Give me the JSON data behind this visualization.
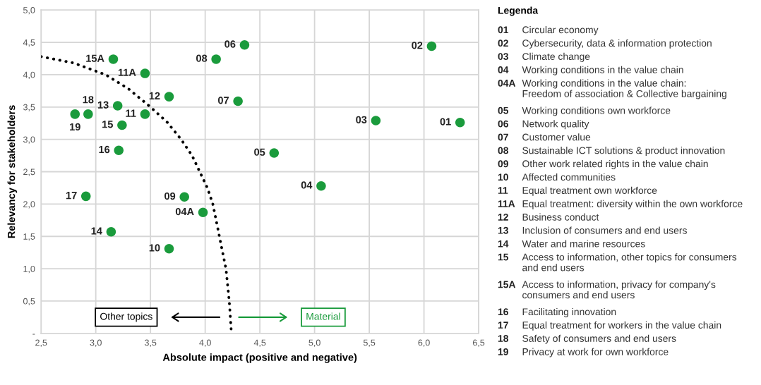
{
  "chart_data": [
    {
      "type": "scatter",
      "xlabel": "Absolute impact (positive and negative)",
      "ylabel": "Relevancy for stakeholders",
      "xlim": [
        2.5,
        6.5
      ],
      "ylim": [
        0,
        5
      ],
      "xticks": [
        {
          "value": 2.5,
          "label": "2,5"
        },
        {
          "value": 3.0,
          "label": "3,0"
        },
        {
          "value": 3.5,
          "label": "3,5"
        },
        {
          "value": 4.0,
          "label": "4,0"
        },
        {
          "value": 4.5,
          "label": "4,5"
        },
        {
          "value": 5.0,
          "label": "5,0"
        },
        {
          "value": 5.5,
          "label": "5,5"
        },
        {
          "value": 6.0,
          "label": "6,0"
        },
        {
          "value": 6.5,
          "label": "6,5"
        }
      ],
      "yticks": [
        {
          "value": 0,
          "label": "-"
        },
        {
          "value": 0.5,
          "label": "0,5"
        },
        {
          "value": 1.0,
          "label": "1,0"
        },
        {
          "value": 1.5,
          "label": "1,5"
        },
        {
          "value": 2.0,
          "label": "2,0"
        },
        {
          "value": 2.5,
          "label": "2,5"
        },
        {
          "value": 3.0,
          "label": "3,0"
        },
        {
          "value": 3.5,
          "label": "3,5"
        },
        {
          "value": 4.0,
          "label": "4,0"
        },
        {
          "value": 4.5,
          "label": "4,5"
        },
        {
          "value": 5.0,
          "label": "5,0"
        }
      ],
      "grid": true,
      "series": [
        {
          "type": "scatter",
          "name": "01",
          "color": "#1a9b3c",
          "marker": "circle",
          "x": [
            6.33
          ],
          "values": [
            3.26
          ]
        },
        {
          "type": "scatter",
          "name": "02",
          "color": "#1a9b3c",
          "marker": "circle",
          "x": [
            6.07
          ],
          "values": [
            4.44
          ]
        },
        {
          "type": "scatter",
          "name": "03",
          "color": "#1a9b3c",
          "marker": "circle",
          "x": [
            5.56
          ],
          "values": [
            3.29
          ]
        },
        {
          "type": "scatter",
          "name": "04",
          "color": "#1a9b3c",
          "marker": "circle",
          "x": [
            5.06
          ],
          "values": [
            2.28
          ]
        },
        {
          "type": "scatter",
          "name": "04A",
          "color": "#1a9b3c",
          "marker": "circle",
          "x": [
            3.98
          ],
          "values": [
            1.87
          ]
        },
        {
          "type": "scatter",
          "name": "05",
          "color": "#1a9b3c",
          "marker": "circle",
          "x": [
            4.63
          ],
          "values": [
            2.79
          ]
        },
        {
          "type": "scatter",
          "name": "06",
          "color": "#1a9b3c",
          "marker": "circle",
          "x": [
            4.36
          ],
          "values": [
            4.46
          ]
        },
        {
          "type": "scatter",
          "name": "07",
          "color": "#1a9b3c",
          "marker": "circle",
          "x": [
            4.3
          ],
          "values": [
            3.59
          ]
        },
        {
          "type": "scatter",
          "name": "08",
          "color": "#1a9b3c",
          "marker": "circle",
          "x": [
            4.1
          ],
          "values": [
            4.24
          ]
        },
        {
          "type": "scatter",
          "name": "09",
          "color": "#1a9b3c",
          "marker": "circle",
          "x": [
            3.81
          ],
          "values": [
            2.11
          ]
        },
        {
          "type": "scatter",
          "name": "10",
          "color": "#1a9b3c",
          "marker": "circle",
          "x": [
            3.67
          ],
          "values": [
            1.31
          ]
        },
        {
          "type": "scatter",
          "name": "11",
          "color": "#1a9b3c",
          "marker": "circle",
          "x": [
            3.45
          ],
          "values": [
            3.39
          ]
        },
        {
          "type": "scatter",
          "name": "11A",
          "color": "#1a9b3c",
          "marker": "circle",
          "x": [
            3.45
          ],
          "values": [
            4.02
          ]
        },
        {
          "type": "scatter",
          "name": "12",
          "color": "#1a9b3c",
          "marker": "circle",
          "x": [
            3.67
          ],
          "values": [
            3.66
          ]
        },
        {
          "type": "scatter",
          "name": "13",
          "color": "#1a9b3c",
          "marker": "circle",
          "x": [
            3.2
          ],
          "values": [
            3.52
          ]
        },
        {
          "type": "scatter",
          "name": "14",
          "color": "#1a9b3c",
          "marker": "circle",
          "x": [
            3.14
          ],
          "values": [
            1.57
          ]
        },
        {
          "type": "scatter",
          "name": "15",
          "color": "#1a9b3c",
          "marker": "circle",
          "x": [
            3.24
          ],
          "values": [
            3.22
          ]
        },
        {
          "type": "scatter",
          "name": "15A",
          "color": "#1a9b3c",
          "marker": "circle",
          "x": [
            3.16
          ],
          "values": [
            4.24
          ]
        },
        {
          "type": "scatter",
          "name": "16",
          "color": "#1a9b3c",
          "marker": "circle",
          "x": [
            3.21
          ],
          "values": [
            2.83
          ]
        },
        {
          "type": "scatter",
          "name": "17",
          "color": "#1a9b3c",
          "marker": "circle",
          "x": [
            2.91
          ],
          "values": [
            2.12
          ]
        },
        {
          "type": "scatter",
          "name": "18",
          "color": "#1a9b3c",
          "marker": "circle",
          "x": [
            2.93
          ],
          "values": [
            3.39
          ]
        },
        {
          "type": "scatter",
          "name": "19",
          "color": "#1a9b3c",
          "marker": "circle",
          "x": [
            2.81
          ],
          "values": [
            3.39
          ]
        },
        {
          "type": "line",
          "color": "#000000",
          "line_style": "dotted",
          "x": [
            2.5,
            2.8,
            3.09,
            3.3,
            3.5,
            3.65,
            3.78,
            3.88,
            3.95,
            4.02,
            4.07,
            4.13,
            4.19,
            4.22,
            4.24
          ],
          "values": [
            4.28,
            4.18,
            4.0,
            3.78,
            3.5,
            3.27,
            3.0,
            2.75,
            2.5,
            2.25,
            2.0,
            1.5,
            1.0,
            0.5,
            0.0
          ]
        }
      ],
      "annotations": [
        "Other topics",
        "Material"
      ]
    },
    {
      "type": "other",
      "title": "Legenda",
      "categories": [
        "01",
        "02",
        "03",
        "04",
        "04A",
        "05",
        "06",
        "07",
        "08",
        "09",
        "10",
        "11",
        "11A",
        "12",
        "13",
        "14",
        "15",
        "15A",
        "16",
        "17",
        "18",
        "19"
      ],
      "annotations": [
        "Circular economy",
        "Cybersecurity, data & information protection",
        "Climate change",
        "Working conditions in the value chain",
        "Working conditions in the value chain:\nFreedom of association & Collective bargaining",
        "Working conditions own workforce",
        "Network quality",
        "Customer value",
        "Sustainable ICT solutions & product innovation",
        "Other work related rights in the value chain",
        "Affected communities",
        "Equal treatment own workforce",
        "Equal treatment: diversity within the own workforce",
        "Business conduct",
        "Inclusion of consumers and end users",
        "Water and marine resources",
        "Access to information, other topics for consumers\nand end users",
        "Access to information, privacy for company's\nconsumers and end users",
        "Facilitating innovation",
        "Equal treatment for workers in the value chain",
        "Safety of consumers and end users",
        "Privacy at work for own workforce"
      ]
    }
  ]
}
